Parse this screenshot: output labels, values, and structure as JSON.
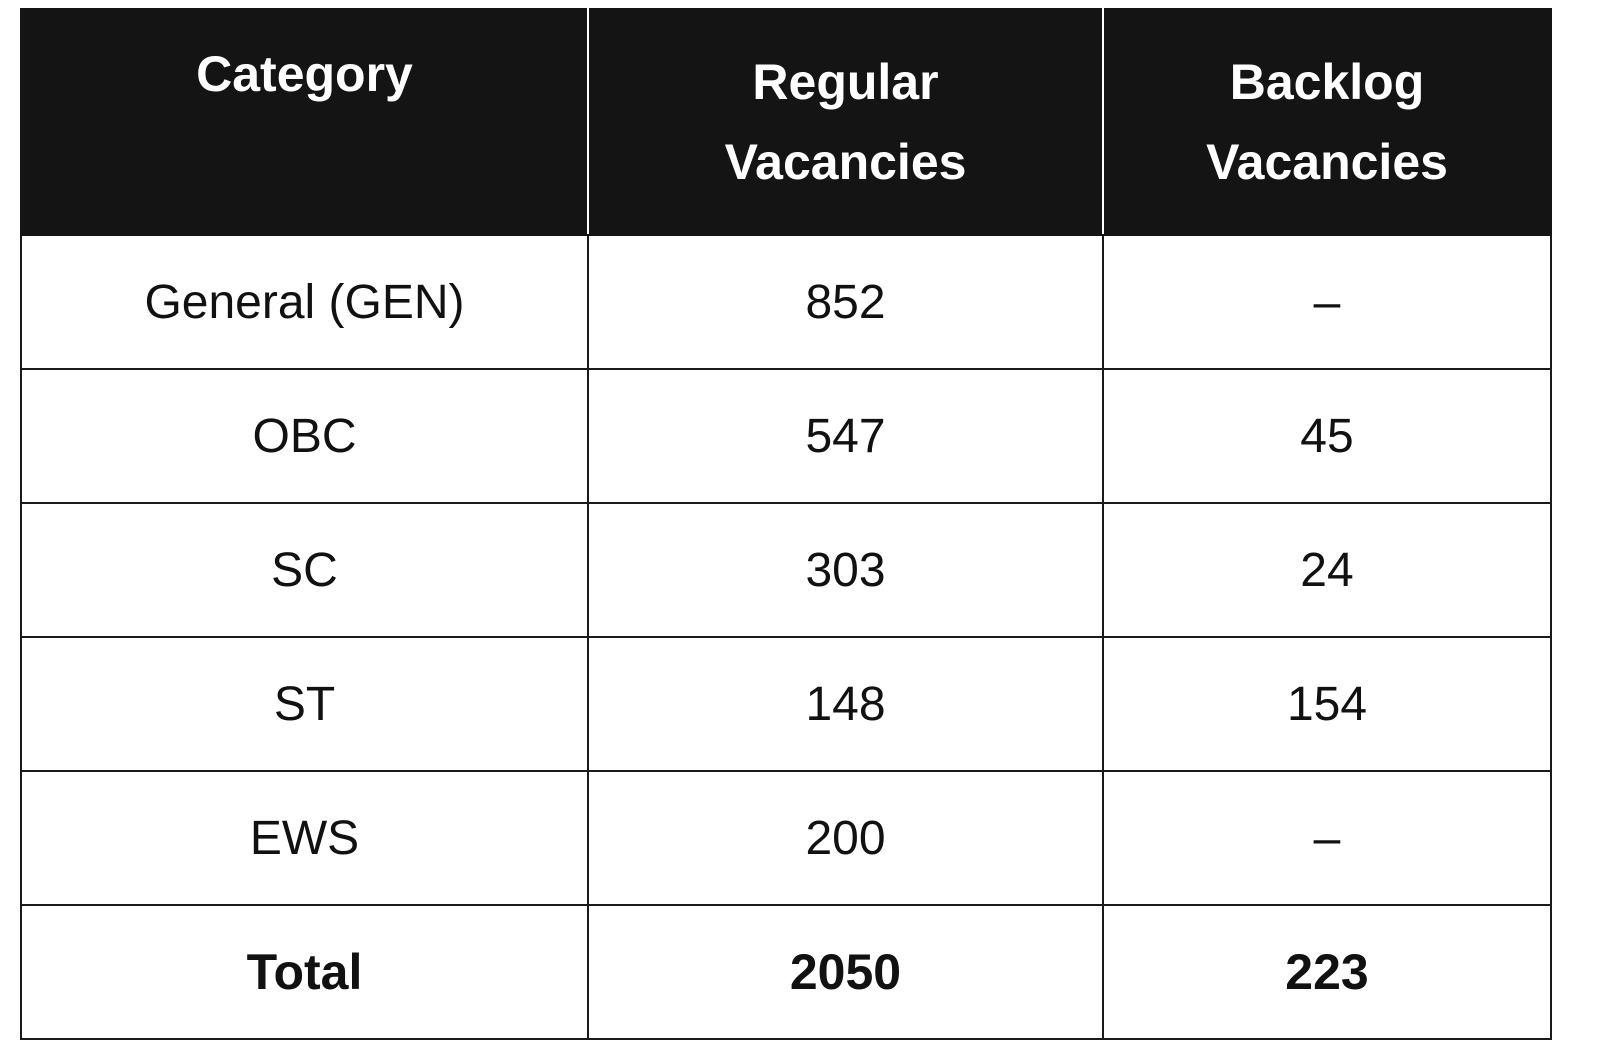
{
  "table": {
    "header": [
      "Category",
      "Regular Vacancies",
      "Backlog Vacancies"
    ],
    "rows": [
      [
        "General (GEN)",
        852,
        "–"
      ],
      [
        "OBC",
        547,
        45
      ],
      [
        "SC",
        303,
        24
      ],
      [
        "ST",
        148,
        154
      ],
      [
        "EWS",
        200,
        "–"
      ]
    ],
    "total": [
      "Total",
      2050,
      223
    ]
  }
}
